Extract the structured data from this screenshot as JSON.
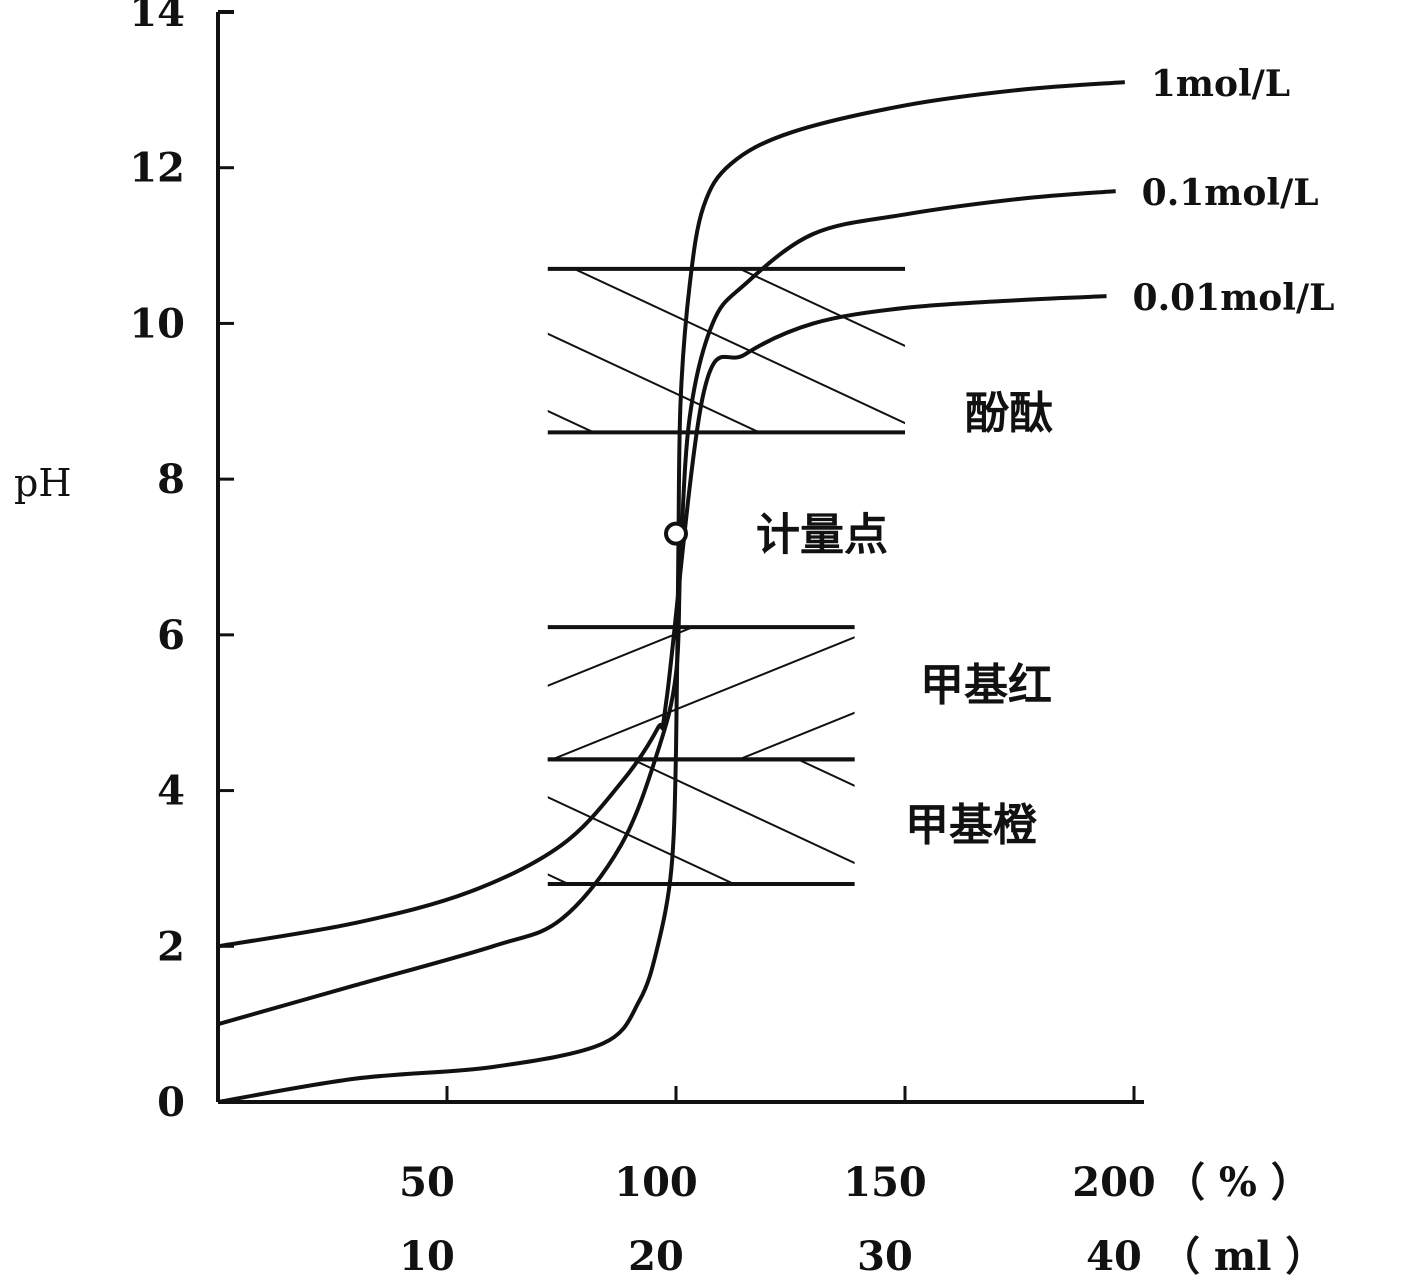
{
  "chart_data": {
    "type": "line",
    "title": "",
    "ylabel": "pH",
    "xlabel": "",
    "ylim": [
      0,
      14
    ],
    "xlim": [
      0,
      200
    ],
    "grid": false,
    "yticks": [
      0,
      2,
      4,
      6,
      8,
      10,
      12,
      14
    ],
    "xticks_percent": [
      50,
      100,
      150,
      200
    ],
    "xticks_ml": [
      10,
      20,
      30,
      40
    ],
    "x_unit_percent": "（ % ）",
    "x_unit_ml": "（ ml ）",
    "series": [
      {
        "name": "1mol/L",
        "points": [
          [
            0,
            0
          ],
          [
            30,
            0.3
          ],
          [
            60,
            0.45
          ],
          [
            84,
            0.75
          ],
          [
            92,
            1.3
          ],
          [
            96,
            2.0
          ],
          [
            99,
            3.0
          ],
          [
            100,
            4.5
          ],
          [
            100.5,
            7.0
          ],
          [
            101,
            9.0
          ],
          [
            103,
            10.5
          ],
          [
            106,
            11.5
          ],
          [
            112,
            12.05
          ],
          [
            125,
            12.45
          ],
          [
            150,
            12.8
          ],
          [
            175,
            13.0
          ],
          [
            198,
            13.1
          ]
        ]
      },
      {
        "name": "0.1mol/L",
        "points": [
          [
            0,
            1.0
          ],
          [
            30,
            1.5
          ],
          [
            60,
            2.0
          ],
          [
            75,
            2.35
          ],
          [
            88,
            3.3
          ],
          [
            96,
            4.5
          ],
          [
            100,
            5.5
          ],
          [
            101,
            7.0
          ],
          [
            103,
            8.8
          ],
          [
            108,
            10.0
          ],
          [
            115,
            10.5
          ],
          [
            130,
            11.15
          ],
          [
            150,
            11.4
          ],
          [
            175,
            11.6
          ],
          [
            196,
            11.7
          ]
        ]
      },
      {
        "name": "0.01mol/L",
        "points": [
          [
            0,
            2.0
          ],
          [
            30,
            2.3
          ],
          [
            55,
            2.7
          ],
          [
            75,
            3.3
          ],
          [
            88,
            4.1
          ],
          [
            96,
            4.8
          ],
          [
            98,
            5.2
          ],
          [
            106,
            9.1
          ],
          [
            115,
            9.6
          ],
          [
            130,
            10.0
          ],
          [
            150,
            10.2
          ],
          [
            175,
            10.3
          ],
          [
            194,
            10.35
          ]
        ]
      }
    ],
    "indicator_ranges": [
      {
        "name": "酚酞",
        "low": 8.6,
        "high": 10.7
      },
      {
        "name": "甲基红",
        "low": 4.4,
        "high": 6.1
      },
      {
        "name": "甲基橙",
        "low": 2.8,
        "high": 4.4
      }
    ],
    "equivalence_point": {
      "label": "计量点",
      "x": 100,
      "y": 7.3
    }
  }
}
